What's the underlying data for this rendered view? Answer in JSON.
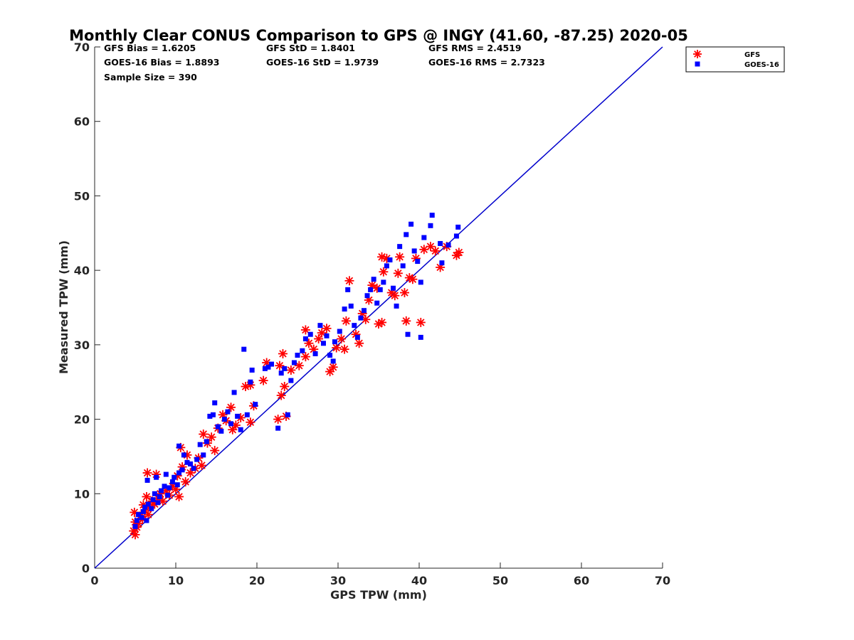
{
  "chart_data": {
    "type": "scatter",
    "title": "Monthly Clear CONUS Comparison to GPS @ INGY (41.60, -87.25) 2020-05",
    "xlabel": "GPS TPW (mm)",
    "ylabel": "Measured TPW (mm)",
    "xlim": [
      0,
      70
    ],
    "ylim": [
      0,
      70
    ],
    "xticks": [
      0,
      10,
      20,
      30,
      40,
      50,
      60,
      70
    ],
    "yticks": [
      0,
      10,
      20,
      30,
      40,
      50,
      60,
      70
    ],
    "xtick_labels": [
      "0",
      "10",
      "20",
      "30",
      "40",
      "50",
      "60",
      "70"
    ],
    "ytick_labels": [
      "0",
      "10",
      "20",
      "30",
      "40",
      "50",
      "60",
      "70"
    ],
    "grid": false,
    "legend_position": "outside top-right",
    "reference_line": {
      "type": "identity",
      "x": [
        0,
        70
      ],
      "y": [
        0,
        70
      ],
      "color": "#0000cc"
    },
    "stats": [
      [
        "GFS Bias = 1.6205",
        "GFS StD = 1.8401",
        "GFS RMS = 2.4519"
      ],
      [
        "GOES-16 Bias = 1.8893",
        "GOES-16 StD = 1.9739",
        "GOES-16 RMS = 2.7323"
      ],
      [
        "Sample Size = 390"
      ]
    ],
    "series": [
      {
        "name": "GFS",
        "marker": "asterisk",
        "color": "#ff0000",
        "points": [
          [
            4.8,
            5.0
          ],
          [
            5.0,
            4.5
          ],
          [
            5.2,
            5.5
          ],
          [
            5.0,
            6.2
          ],
          [
            4.9,
            7.5
          ],
          [
            5.4,
            6.0
          ],
          [
            5.6,
            7.0
          ],
          [
            5.9,
            6.6
          ],
          [
            6.2,
            7.8
          ],
          [
            6.0,
            8.5
          ],
          [
            6.6,
            7.2
          ],
          [
            6.8,
            8.2
          ],
          [
            7.1,
            9.0
          ],
          [
            6.4,
            9.6
          ],
          [
            7.4,
            8.6
          ],
          [
            7.8,
            9.4
          ],
          [
            8.1,
            10.0
          ],
          [
            6.5,
            12.8
          ],
          [
            7.6,
            12.6
          ],
          [
            8.4,
            9.0
          ],
          [
            8.8,
            10.4
          ],
          [
            9.2,
            9.8
          ],
          [
            9.6,
            11.0
          ],
          [
            10.0,
            10.6
          ],
          [
            10.4,
            9.6
          ],
          [
            10.2,
            12.4
          ],
          [
            10.8,
            13.6
          ],
          [
            11.2,
            11.6
          ],
          [
            11.8,
            12.8
          ],
          [
            12.4,
            13.4
          ],
          [
            12.8,
            14.8
          ],
          [
            13.2,
            13.8
          ],
          [
            10.6,
            16.2
          ],
          [
            11.4,
            15.2
          ],
          [
            13.4,
            18.0
          ],
          [
            13.9,
            16.8
          ],
          [
            14.4,
            17.6
          ],
          [
            14.8,
            15.8
          ],
          [
            15.2,
            18.8
          ],
          [
            15.8,
            20.6
          ],
          [
            16.2,
            19.8
          ],
          [
            16.8,
            21.6
          ],
          [
            17.4,
            19.2
          ],
          [
            18.0,
            20.2
          ],
          [
            18.6,
            24.4
          ],
          [
            19.2,
            24.6
          ],
          [
            19.6,
            21.8
          ],
          [
            19.2,
            19.6
          ],
          [
            17.0,
            18.6
          ],
          [
            20.8,
            25.2
          ],
          [
            21.2,
            27.6
          ],
          [
            22.6,
            20.0
          ],
          [
            23.0,
            23.2
          ],
          [
            23.4,
            24.4
          ],
          [
            23.6,
            20.4
          ],
          [
            22.8,
            27.2
          ],
          [
            23.2,
            28.8
          ],
          [
            24.2,
            26.6
          ],
          [
            25.2,
            27.2
          ],
          [
            26.0,
            28.4
          ],
          [
            26.4,
            30.2
          ],
          [
            26.0,
            32.0
          ],
          [
            27.0,
            29.4
          ],
          [
            27.6,
            30.8
          ],
          [
            28.0,
            31.6
          ],
          [
            28.6,
            32.2
          ],
          [
            29.0,
            26.4
          ],
          [
            29.4,
            27.0
          ],
          [
            29.8,
            29.6
          ],
          [
            30.4,
            30.8
          ],
          [
            30.8,
            29.4
          ],
          [
            31.0,
            33.2
          ],
          [
            31.4,
            38.6
          ],
          [
            32.2,
            31.4
          ],
          [
            32.6,
            30.2
          ],
          [
            33.0,
            34.2
          ],
          [
            33.4,
            33.4
          ],
          [
            33.8,
            36.0
          ],
          [
            34.2,
            38.0
          ],
          [
            34.8,
            37.6
          ],
          [
            35.0,
            32.8
          ],
          [
            35.4,
            33.0
          ],
          [
            35.6,
            39.8
          ],
          [
            35.4,
            41.8
          ],
          [
            36.0,
            41.6
          ],
          [
            36.6,
            37.0
          ],
          [
            37.0,
            36.6
          ],
          [
            37.4,
            39.6
          ],
          [
            37.6,
            41.8
          ],
          [
            38.2,
            37.0
          ],
          [
            38.4,
            33.2
          ],
          [
            38.8,
            39.0
          ],
          [
            39.2,
            38.8
          ],
          [
            39.6,
            41.6
          ],
          [
            40.2,
            33.0
          ],
          [
            40.6,
            42.8
          ],
          [
            41.4,
            43.2
          ],
          [
            42.0,
            42.6
          ],
          [
            42.6,
            40.4
          ],
          [
            43.4,
            43.2
          ],
          [
            44.6,
            42.0
          ],
          [
            44.9,
            42.4
          ]
        ]
      },
      {
        "name": "GOES-16",
        "marker": "square",
        "color": "#0000ff",
        "points": [
          [
            5.0,
            5.6
          ],
          [
            5.2,
            6.4
          ],
          [
            5.4,
            7.2
          ],
          [
            5.8,
            6.8
          ],
          [
            6.0,
            7.6
          ],
          [
            6.2,
            8.2
          ],
          [
            6.4,
            6.4
          ],
          [
            6.6,
            8.6
          ],
          [
            6.5,
            11.8
          ],
          [
            7.0,
            8.0
          ],
          [
            7.2,
            9.2
          ],
          [
            7.4,
            10.0
          ],
          [
            7.8,
            8.8
          ],
          [
            8.0,
            9.6
          ],
          [
            7.6,
            12.2
          ],
          [
            8.2,
            10.4
          ],
          [
            8.6,
            11.0
          ],
          [
            8.8,
            12.6
          ],
          [
            9.0,
            9.8
          ],
          [
            9.2,
            10.8
          ],
          [
            9.6,
            11.6
          ],
          [
            9.8,
            12.2
          ],
          [
            10.2,
            11.2
          ],
          [
            10.4,
            12.8
          ],
          [
            10.8,
            13.2
          ],
          [
            11.0,
            15.2
          ],
          [
            11.4,
            14.2
          ],
          [
            10.4,
            16.4
          ],
          [
            11.8,
            14.0
          ],
          [
            12.2,
            13.4
          ],
          [
            12.6,
            14.6
          ],
          [
            13.0,
            16.6
          ],
          [
            13.4,
            15.2
          ],
          [
            13.8,
            17.0
          ],
          [
            14.2,
            20.4
          ],
          [
            14.6,
            20.6
          ],
          [
            14.8,
            22.2
          ],
          [
            15.2,
            19.0
          ],
          [
            15.6,
            18.4
          ],
          [
            16.0,
            20.0
          ],
          [
            16.4,
            21.0
          ],
          [
            16.8,
            19.4
          ],
          [
            17.2,
            23.6
          ],
          [
            17.6,
            20.4
          ],
          [
            18.0,
            18.6
          ],
          [
            18.4,
            29.4
          ],
          [
            18.8,
            20.6
          ],
          [
            19.2,
            25.0
          ],
          [
            19.4,
            26.6
          ],
          [
            19.8,
            22.0
          ],
          [
            21.0,
            26.8
          ],
          [
            21.4,
            27.0
          ],
          [
            21.8,
            27.4
          ],
          [
            22.6,
            18.8
          ],
          [
            23.0,
            26.2
          ],
          [
            23.4,
            26.8
          ],
          [
            23.8,
            20.6
          ],
          [
            24.2,
            25.2
          ],
          [
            24.6,
            27.6
          ],
          [
            25.0,
            28.6
          ],
          [
            25.6,
            29.2
          ],
          [
            26.0,
            30.8
          ],
          [
            26.6,
            31.4
          ],
          [
            27.2,
            28.8
          ],
          [
            27.8,
            32.6
          ],
          [
            28.2,
            30.2
          ],
          [
            28.6,
            31.2
          ],
          [
            29.0,
            28.6
          ],
          [
            29.4,
            27.8
          ],
          [
            29.6,
            30.4
          ],
          [
            30.2,
            31.8
          ],
          [
            30.8,
            34.8
          ],
          [
            31.2,
            37.4
          ],
          [
            31.6,
            35.2
          ],
          [
            32.0,
            32.6
          ],
          [
            32.4,
            31.0
          ],
          [
            32.8,
            33.6
          ],
          [
            33.2,
            34.6
          ],
          [
            33.6,
            36.6
          ],
          [
            34.0,
            37.4
          ],
          [
            34.4,
            38.8
          ],
          [
            34.8,
            35.6
          ],
          [
            35.2,
            37.4
          ],
          [
            35.6,
            38.4
          ],
          [
            36.0,
            40.6
          ],
          [
            36.4,
            41.4
          ],
          [
            36.8,
            37.6
          ],
          [
            37.2,
            35.2
          ],
          [
            37.6,
            43.2
          ],
          [
            38.0,
            40.6
          ],
          [
            38.4,
            44.8
          ],
          [
            38.6,
            31.4
          ],
          [
            39.0,
            46.2
          ],
          [
            39.4,
            42.6
          ],
          [
            39.8,
            41.2
          ],
          [
            40.2,
            38.4
          ],
          [
            40.6,
            44.4
          ],
          [
            40.2,
            31.0
          ],
          [
            41.4,
            46.0
          ],
          [
            41.6,
            47.4
          ],
          [
            42.6,
            43.6
          ],
          [
            42.8,
            41.0
          ],
          [
            43.6,
            43.4
          ],
          [
            44.6,
            44.6
          ],
          [
            44.8,
            45.8
          ]
        ]
      }
    ]
  }
}
